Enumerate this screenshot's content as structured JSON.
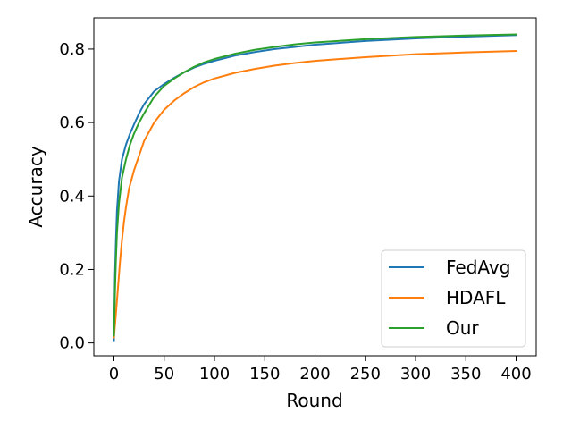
{
  "chart_data": {
    "type": "line",
    "title": "",
    "xlabel": "Round",
    "ylabel": "Accuracy",
    "xlim": [
      -20,
      420
    ],
    "ylim": [
      -0.035,
      0.885
    ],
    "xticks": [
      0,
      50,
      100,
      150,
      200,
      250,
      300,
      350,
      400
    ],
    "yticks": [
      0.0,
      0.2,
      0.4,
      0.6,
      0.8
    ],
    "ytick_labels": [
      "0.0",
      "0.2",
      "0.4",
      "0.6",
      "0.8"
    ],
    "legend_position": "lower-right",
    "series": [
      {
        "name": "FedAvg",
        "color": "#1f77b4",
        "points": [
          [
            0,
            0.005
          ],
          [
            1,
            0.18
          ],
          [
            2,
            0.28
          ],
          [
            3,
            0.36
          ],
          [
            5,
            0.44
          ],
          [
            8,
            0.5
          ],
          [
            12,
            0.54
          ],
          [
            16,
            0.57
          ],
          [
            20,
            0.595
          ],
          [
            25,
            0.625
          ],
          [
            30,
            0.65
          ],
          [
            40,
            0.685
          ],
          [
            50,
            0.705
          ],
          [
            60,
            0.722
          ],
          [
            70,
            0.737
          ],
          [
            80,
            0.75
          ],
          [
            90,
            0.76
          ],
          [
            100,
            0.768
          ],
          [
            120,
            0.782
          ],
          [
            140,
            0.792
          ],
          [
            160,
            0.8
          ],
          [
            180,
            0.806
          ],
          [
            200,
            0.812
          ],
          [
            250,
            0.822
          ],
          [
            300,
            0.829
          ],
          [
            350,
            0.834
          ],
          [
            400,
            0.838
          ]
        ]
      },
      {
        "name": "HDAFL",
        "color": "#ff7f0e",
        "points": [
          [
            0,
            0.015
          ],
          [
            2,
            0.08
          ],
          [
            4,
            0.15
          ],
          [
            6,
            0.22
          ],
          [
            8,
            0.28
          ],
          [
            10,
            0.33
          ],
          [
            12,
            0.37
          ],
          [
            15,
            0.42
          ],
          [
            20,
            0.47
          ],
          [
            25,
            0.51
          ],
          [
            30,
            0.55
          ],
          [
            40,
            0.6
          ],
          [
            50,
            0.635
          ],
          [
            60,
            0.66
          ],
          [
            70,
            0.68
          ],
          [
            80,
            0.697
          ],
          [
            90,
            0.71
          ],
          [
            100,
            0.72
          ],
          [
            120,
            0.735
          ],
          [
            140,
            0.746
          ],
          [
            160,
            0.755
          ],
          [
            180,
            0.762
          ],
          [
            200,
            0.768
          ],
          [
            250,
            0.778
          ],
          [
            300,
            0.786
          ],
          [
            350,
            0.791
          ],
          [
            400,
            0.795
          ]
        ]
      },
      {
        "name": "Our",
        "color": "#2ca02c",
        "points": [
          [
            0,
            0.02
          ],
          [
            1,
            0.14
          ],
          [
            2,
            0.23
          ],
          [
            3,
            0.3
          ],
          [
            5,
            0.38
          ],
          [
            8,
            0.45
          ],
          [
            12,
            0.5
          ],
          [
            16,
            0.54
          ],
          [
            20,
            0.57
          ],
          [
            25,
            0.6
          ],
          [
            30,
            0.625
          ],
          [
            40,
            0.67
          ],
          [
            50,
            0.7
          ],
          [
            60,
            0.72
          ],
          [
            70,
            0.737
          ],
          [
            80,
            0.752
          ],
          [
            90,
            0.764
          ],
          [
            100,
            0.773
          ],
          [
            120,
            0.787
          ],
          [
            140,
            0.798
          ],
          [
            160,
            0.806
          ],
          [
            180,
            0.813
          ],
          [
            200,
            0.818
          ],
          [
            250,
            0.827
          ],
          [
            300,
            0.833
          ],
          [
            350,
            0.837
          ],
          [
            400,
            0.84
          ]
        ]
      }
    ]
  }
}
